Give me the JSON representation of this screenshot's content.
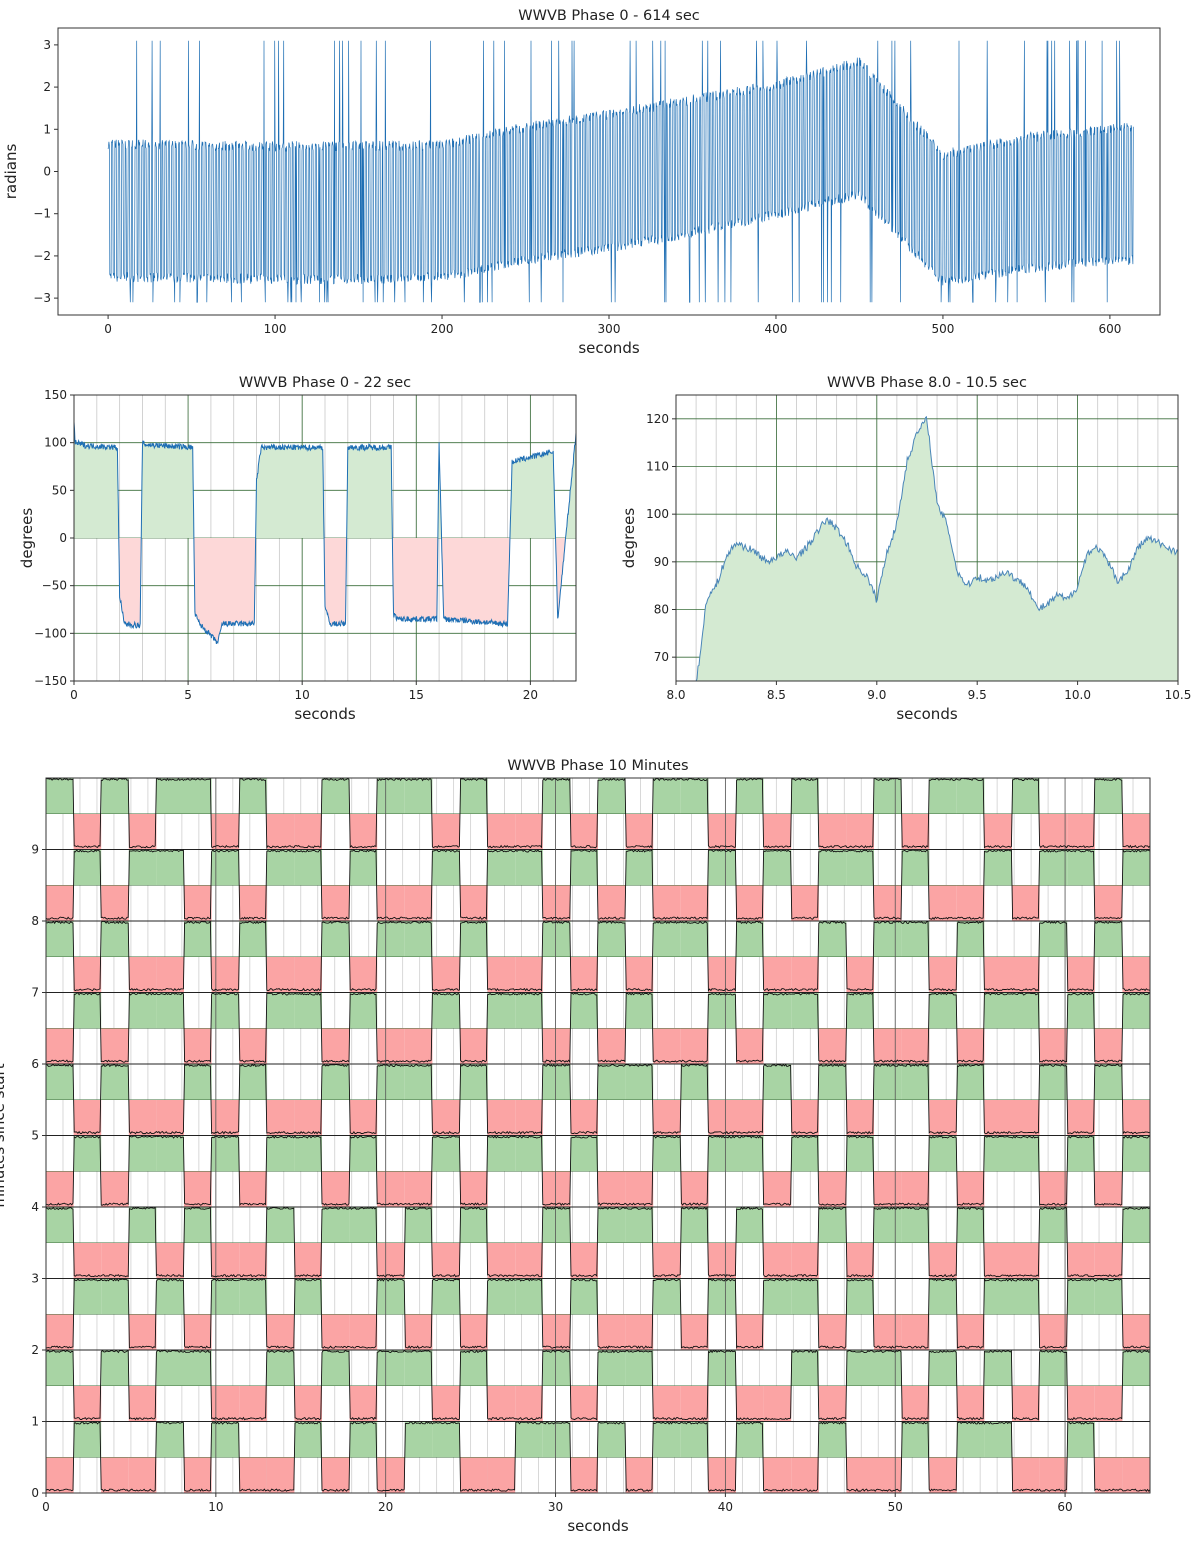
{
  "chart_data": [
    {
      "id": "overview",
      "type": "line",
      "title": "WWVB Phase     0 - 614 sec",
      "xlabel": "seconds",
      "ylabel": "radians",
      "xlim": [
        -30,
        630
      ],
      "ylim": [
        -3.4,
        3.4
      ],
      "xticks": [
        0,
        100,
        200,
        300,
        400,
        500,
        600
      ],
      "yticks": [
        -3,
        -2,
        -1,
        0,
        1,
        2,
        3
      ],
      "grid": false,
      "line_color": "#1f6fb4",
      "series": [
        {
          "x": [
            0,
            50,
            100,
            150,
            200,
            250,
            300,
            350,
            400,
            450,
            500,
            550,
            600,
            614
          ],
          "values": [
            0.65,
            0.62,
            0.6,
            0.6,
            0.62,
            1.05,
            1.35,
            1.7,
            2.05,
            2.6,
            0.4,
            0.8,
            1.0,
            1.05
          ]
        },
        {
          "x": [
            0,
            50,
            100,
            150,
            200,
            250,
            300,
            350,
            400,
            450,
            500,
            550,
            600,
            614
          ],
          "values": [
            -2.5,
            -2.52,
            -2.55,
            -2.55,
            -2.5,
            -2.1,
            -1.8,
            -1.45,
            -1.0,
            -0.55,
            -2.6,
            -2.3,
            -2.1,
            -2.1
          ]
        }
      ]
    },
    {
      "id": "first-22-sec",
      "type": "area",
      "title": "WWVB Phase    0 - 22 sec",
      "xlabel": "seconds",
      "ylabel": "degrees",
      "xlim": [
        0,
        22
      ],
      "ylim": [
        -150,
        150
      ],
      "xticks": [
        0,
        5,
        10,
        15,
        20
      ],
      "yticks": [
        -150,
        -100,
        -50,
        0,
        50,
        100,
        150
      ],
      "grid": true,
      "positive_fill": "#d4ead2",
      "negative_fill": "#fdd8d8",
      "line_color": "#1f6fb4",
      "series": [
        {
          "x": [
            0,
            0.05,
            0.5,
            1.9,
            2.0,
            2.2,
            2.9,
            3.0,
            3.1,
            5.2,
            5.3,
            5.5,
            6.3,
            6.5,
            7.9,
            8.0,
            8.2,
            10.9,
            11.0,
            11.2,
            11.9,
            12.0,
            12.2,
            13.9,
            14.0,
            14.2,
            15.9,
            16.0,
            16.2,
            18.9,
            19.0,
            19.2,
            20.9,
            21.0,
            21.2,
            22.0
          ],
          "values": [
            120,
            100,
            97,
            95,
            -60,
            -90,
            -92,
            100,
            98,
            95,
            -80,
            -90,
            -110,
            -90,
            -90,
            60,
            95,
            95,
            -70,
            -90,
            -90,
            95,
            95,
            95,
            -80,
            -85,
            -85,
            100,
            -85,
            -90,
            -90,
            80,
            90,
            90,
            -85,
            110
          ]
        }
      ]
    },
    {
      "id": "zoom-8-10.5",
      "type": "area",
      "title": "WWVB Phase    8.0 - 10.5 sec",
      "xlabel": "seconds",
      "ylabel": "degrees",
      "xlim": [
        8.0,
        10.5
      ],
      "ylim": [
        65,
        125
      ],
      "xticks": [
        8.0,
        8.5,
        9.0,
        9.5,
        10.0,
        10.5
      ],
      "yticks": [
        70,
        80,
        90,
        100,
        110,
        120
      ],
      "grid": true,
      "positive_fill": "#d4ead2",
      "line_color": "#4a86b8",
      "series": [
        {
          "x": [
            8.1,
            8.12,
            8.15,
            8.2,
            8.25,
            8.3,
            8.35,
            8.4,
            8.45,
            8.5,
            8.55,
            8.6,
            8.65,
            8.7,
            8.75,
            8.8,
            8.85,
            8.9,
            8.95,
            9.0,
            9.05,
            9.1,
            9.15,
            9.2,
            9.25,
            9.3,
            9.35,
            9.4,
            9.45,
            9.5,
            9.55,
            9.6,
            9.65,
            9.7,
            9.75,
            9.8,
            9.85,
            9.9,
            9.95,
            10.0,
            10.05,
            10.1,
            10.15,
            10.2,
            10.25,
            10.3,
            10.35,
            10.4,
            10.45,
            10.5
          ],
          "values": [
            65,
            70,
            82,
            85,
            91,
            94,
            93,
            92,
            90,
            91,
            92,
            91,
            93,
            96,
            99,
            97,
            94,
            89,
            87,
            82,
            92,
            98,
            111,
            117,
            120,
            102,
            98,
            88,
            85,
            87,
            86,
            87,
            88,
            86,
            85,
            80,
            81,
            83,
            82,
            85,
            92,
            93,
            90,
            86,
            88,
            93,
            95,
            94,
            93,
            92
          ]
        }
      ]
    },
    {
      "id": "ten-minutes",
      "type": "area",
      "title": "WWVB Phase      10 Minutes",
      "xlabel": "seconds",
      "ylabel": "minutes since start",
      "xlim": [
        0,
        65
      ],
      "ylim": [
        0,
        10
      ],
      "xticks": [
        0,
        10,
        20,
        30,
        40,
        50,
        60
      ],
      "yticks": [
        0,
        1,
        2,
        3,
        4,
        5,
        6,
        7,
        8,
        9
      ],
      "grid": true,
      "positive_fill": "#a8d4a4",
      "negative_fill": "#fba4a4",
      "line_color": "#111111",
      "series": [
        {
          "name": "0",
          "bits": "0100101001010110011010110100100101100100"
        },
        {
          "name": "1",
          "bits": "1010110010101101001011001001011010101001"
        },
        {
          "name": "2",
          "bits": "0110101101001010110100101011010010110110"
        },
        {
          "name": "3",
          "bits": "1001010010110101001011010100101101001001"
        },
        {
          "name": "4",
          "bits": "0101101011010010110100101101010010110101"
        },
        {
          "name": "5",
          "bits": "1010010100101101001011010010101101001010"
        },
        {
          "name": "6",
          "bits": "0101101011010010110101001011010010110101"
        },
        {
          "name": "7",
          "bits": "1010010100101101001010110100101101001010"
        },
        {
          "name": "8",
          "bits": "0101101011010010110101001010110100101101"
        },
        {
          "name": "9",
          "bits": "1010110100101101001010110101001011010010"
        }
      ]
    }
  ]
}
